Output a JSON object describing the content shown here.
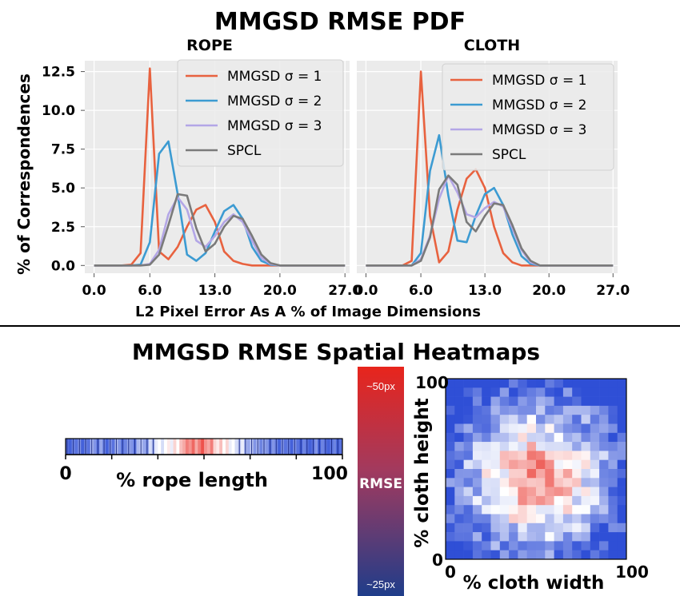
{
  "top_title": "MMGSD RMSE PDF",
  "bottom_title": "MMGSD RMSE Spatial Heatmaps",
  "shared_ylabel": "% of Correspondences",
  "shared_xlabel": "L2 Pixel Error As A % of Image Dimensions",
  "colors": {
    "sigma1": "#e8623f",
    "sigma2": "#3c9bd2",
    "sigma3": "#b3a6e6",
    "spcl": "#7a7a7a",
    "plot_bg": "#ebebeb",
    "heat_high": "#e8271f",
    "heat_mid": "#ffffff",
    "heat_low": "#2f4fd6"
  },
  "chart_data": [
    {
      "type": "line",
      "title": "ROPE",
      "xlabel": "L2 Pixel Error As A % of Image Dimensions",
      "ylabel": "% of Correspondences",
      "xticks": [
        "0.0",
        "6.0",
        "13.0",
        "20.0",
        "27.0"
      ],
      "yticks": [
        "0.0",
        "2.5",
        "5.0",
        "7.5",
        "10.0",
        "12.5"
      ],
      "xlim": [
        -1,
        27.5
      ],
      "ylim": [
        -0.5,
        13.2
      ],
      "grid": true,
      "legend": "top-right",
      "x": [
        0,
        1,
        2,
        3,
        4,
        5,
        6,
        7,
        8,
        9,
        10,
        11,
        12,
        13,
        14,
        15,
        16,
        17,
        18,
        19,
        20,
        21,
        22,
        23,
        24,
        25,
        26,
        27
      ],
      "series": [
        {
          "name": "MMGSD σ = 1",
          "color": "sigma1",
          "values": [
            0,
            0,
            0,
            0,
            0.05,
            0.8,
            12.7,
            0.9,
            0.4,
            1.2,
            2.5,
            3.6,
            3.9,
            2.8,
            0.9,
            0.3,
            0.1,
            0,
            0,
            0,
            0,
            0,
            0,
            0,
            0,
            0,
            0,
            0
          ]
        },
        {
          "name": "MMGSD σ = 2",
          "color": "sigma2",
          "values": [
            0,
            0,
            0,
            0,
            0,
            0.05,
            1.5,
            7.2,
            8.0,
            4.6,
            0.7,
            0.3,
            0.8,
            2.2,
            3.5,
            3.9,
            3.0,
            1.2,
            0.3,
            0.05,
            0,
            0,
            0,
            0,
            0,
            0,
            0,
            0
          ]
        },
        {
          "name": "MMGSD σ = 3",
          "color": "sigma3",
          "values": [
            0,
            0,
            0,
            0,
            0,
            0,
            0.1,
            1.0,
            3.3,
            4.4,
            3.6,
            1.6,
            1.2,
            1.9,
            2.8,
            3.3,
            2.8,
            1.6,
            0.5,
            0.1,
            0,
            0,
            0,
            0,
            0,
            0,
            0,
            0
          ]
        },
        {
          "name": "SPCL",
          "color": "spcl",
          "values": [
            0,
            0,
            0,
            0,
            0,
            0,
            0.05,
            0.7,
            2.6,
            4.6,
            4.5,
            2.4,
            0.9,
            1.4,
            2.5,
            3.2,
            3.0,
            1.9,
            0.7,
            0.15,
            0,
            0,
            0,
            0,
            0,
            0,
            0,
            0
          ]
        }
      ]
    },
    {
      "type": "line",
      "title": "CLOTH",
      "xlabel": "L2 Pixel Error As A % of Image Dimensions",
      "ylabel": "% of Correspondences",
      "xticks": [
        "0.0",
        "6.0",
        "13.0",
        "20.0",
        "27.0"
      ],
      "yticks": [
        "0.0",
        "2.5",
        "5.0",
        "7.5",
        "10.0",
        "12.5"
      ],
      "xlim": [
        -1,
        27.5
      ],
      "ylim": [
        -0.5,
        13.2
      ],
      "grid": true,
      "legend": "top-right",
      "x": [
        0,
        1,
        2,
        3,
        4,
        5,
        6,
        7,
        8,
        9,
        10,
        11,
        12,
        13,
        14,
        15,
        16,
        17,
        18,
        19,
        20,
        21,
        22,
        23,
        24,
        25,
        26,
        27
      ],
      "series": [
        {
          "name": "MMGSD σ = 1",
          "color": "sigma1",
          "values": [
            0,
            0,
            0,
            0,
            0,
            0.3,
            12.5,
            3.2,
            0.2,
            0.9,
            3.6,
            5.6,
            6.2,
            5.0,
            2.5,
            0.8,
            0.2,
            0,
            0,
            0,
            0,
            0,
            0,
            0,
            0,
            0,
            0,
            0
          ]
        },
        {
          "name": "MMGSD σ = 2",
          "color": "sigma2",
          "values": [
            0,
            0,
            0,
            0,
            0,
            0,
            0.8,
            6.1,
            8.4,
            4.5,
            1.6,
            1.5,
            3.2,
            4.6,
            5.0,
            3.9,
            2.0,
            0.6,
            0.1,
            0,
            0,
            0,
            0,
            0,
            0,
            0,
            0,
            0
          ]
        },
        {
          "name": "MMGSD σ = 3",
          "color": "sigma3",
          "values": [
            0,
            0,
            0,
            0,
            0,
            0,
            0.4,
            1.9,
            4.3,
            5.8,
            4.7,
            3.3,
            3.1,
            3.7,
            4.1,
            3.8,
            2.4,
            1.0,
            0.2,
            0,
            0,
            0,
            0,
            0,
            0,
            0,
            0,
            0
          ]
        },
        {
          "name": "SPCL",
          "color": "spcl",
          "values": [
            0,
            0,
            0,
            0,
            0,
            0,
            0.3,
            1.8,
            4.9,
            5.8,
            5.2,
            2.8,
            2.2,
            3.2,
            4.0,
            3.9,
            2.6,
            1.1,
            0.3,
            0,
            0,
            0,
            0,
            0,
            0,
            0,
            0,
            0
          ]
        }
      ]
    },
    {
      "type": "heatmap",
      "title": "",
      "xlabel": "% rope length",
      "ylabel": "",
      "xlim_labels": [
        "0",
        "100"
      ],
      "rows": 1,
      "cols": 90,
      "low_to_high": "blue-white-red",
      "description": "rope RMSE by position: blue at both ends, red near 38-48%",
      "values": [
        0.1,
        0.05,
        0.15,
        0.1,
        0.2,
        0.05,
        0.15,
        0.1,
        0.3,
        0.2,
        0.1,
        0.25,
        0.15,
        0.05,
        0.2,
        0.1,
        0.3,
        0.2,
        0.1,
        0.15,
        0.25,
        0.2,
        0.1,
        0.3,
        0.35,
        0.25,
        0.2,
        0.4,
        0.3,
        0.45,
        0.5,
        0.4,
        0.5,
        0.55,
        0.45,
        0.6,
        0.5,
        0.65,
        0.7,
        0.8,
        0.75,
        0.85,
        0.7,
        0.8,
        0.9,
        0.75,
        0.7,
        0.8,
        0.6,
        0.55,
        0.65,
        0.5,
        0.6,
        0.45,
        0.5,
        0.4,
        0.35,
        0.45,
        0.3,
        0.25,
        0.35,
        0.2,
        0.3,
        0.15,
        0.25,
        0.2,
        0.1,
        0.2,
        0.15,
        0.05,
        0.2,
        0.1,
        0.15,
        0.05,
        0.2,
        0.1,
        0.05,
        0.15,
        0.1,
        0.05,
        0.1,
        0.2,
        0.05,
        0.15,
        0.1,
        0.05,
        0.1,
        0.15,
        0.05,
        0.1
      ]
    },
    {
      "type": "heatmap",
      "title": "",
      "xlabel": "% cloth width",
      "ylabel": "% cloth height",
      "xlim_labels": [
        "0",
        "100"
      ],
      "ylim_labels": [
        "0",
        "100"
      ],
      "rows": 20,
      "cols": 20,
      "low_to_high": "blue-white-red",
      "description": "cloth RMSE: blue at borders, red concentrated near center"
    }
  ],
  "colorbar": {
    "label": "RMSE",
    "top_label": "~50px",
    "bottom_label": "~25px"
  }
}
